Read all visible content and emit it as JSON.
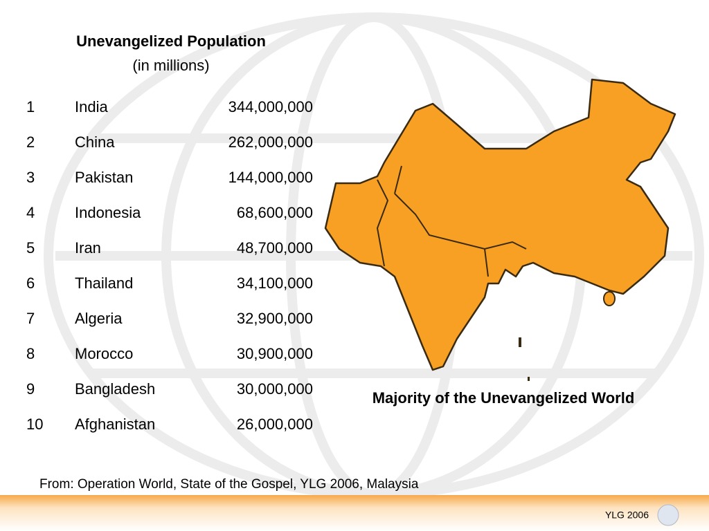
{
  "header": {
    "title": "Unevangelized Population",
    "subtitle": "(in millions)"
  },
  "table": {
    "rows": [
      [
        "1",
        "India",
        "344,000,000"
      ],
      [
        "2",
        "China",
        "262,000,000"
      ],
      [
        "3",
        "Pakistan",
        "144,000,000"
      ],
      [
        "4",
        "Indonesia",
        "68,600,000"
      ],
      [
        "5",
        "Iran",
        "48,700,000"
      ],
      [
        "6",
        "Thailand",
        "34,100,000"
      ],
      [
        "7",
        "Algeria",
        "32,900,000"
      ],
      [
        "8",
        "Morocco",
        "30,900,000"
      ],
      [
        "9",
        "Bangladesh",
        "30,000,000"
      ],
      [
        "10",
        "Afghanistan",
        "26,000,000"
      ]
    ]
  },
  "map": {
    "caption": "Majority of the Unevangelized World"
  },
  "source": "From:  Operation World, State of the Gospel, YLG 2006, Malaysia",
  "footer": {
    "label": "YLG 2006"
  }
}
